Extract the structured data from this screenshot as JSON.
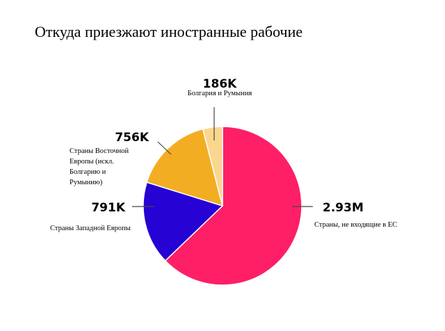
{
  "title": "Откуда приезжают иностранные рабочие",
  "chart_data": {
    "type": "pie",
    "title": "Откуда приезжают иностранные рабочие",
    "unit": "workers",
    "slices": [
      {
        "name": "Страны, не входящие в ЕС",
        "value": 2930000,
        "label": "2.93M",
        "color": "#fe1f67",
        "label_lines": [
          "Страны, не входящие в ЕС"
        ]
      },
      {
        "name": "Страны Западной Европы",
        "value": 791000,
        "label": "791K",
        "color": "#2602d4",
        "label_lines": [
          "Страны Западной Европы"
        ]
      },
      {
        "name": "Страны Восточной Европы (искл. Болгарию и Румынию)",
        "value": 756000,
        "label": "756K",
        "color": "#f3ad22",
        "label_lines": [
          "Страны Восточной",
          "Европы (искл.",
          "Болгарию и",
          "Румынию)"
        ]
      },
      {
        "name": "Болгария и Румыния",
        "value": 186000,
        "label": "186K",
        "color": "#fad78f",
        "label_lines": [
          "Болгария и Румыния"
        ]
      }
    ]
  }
}
